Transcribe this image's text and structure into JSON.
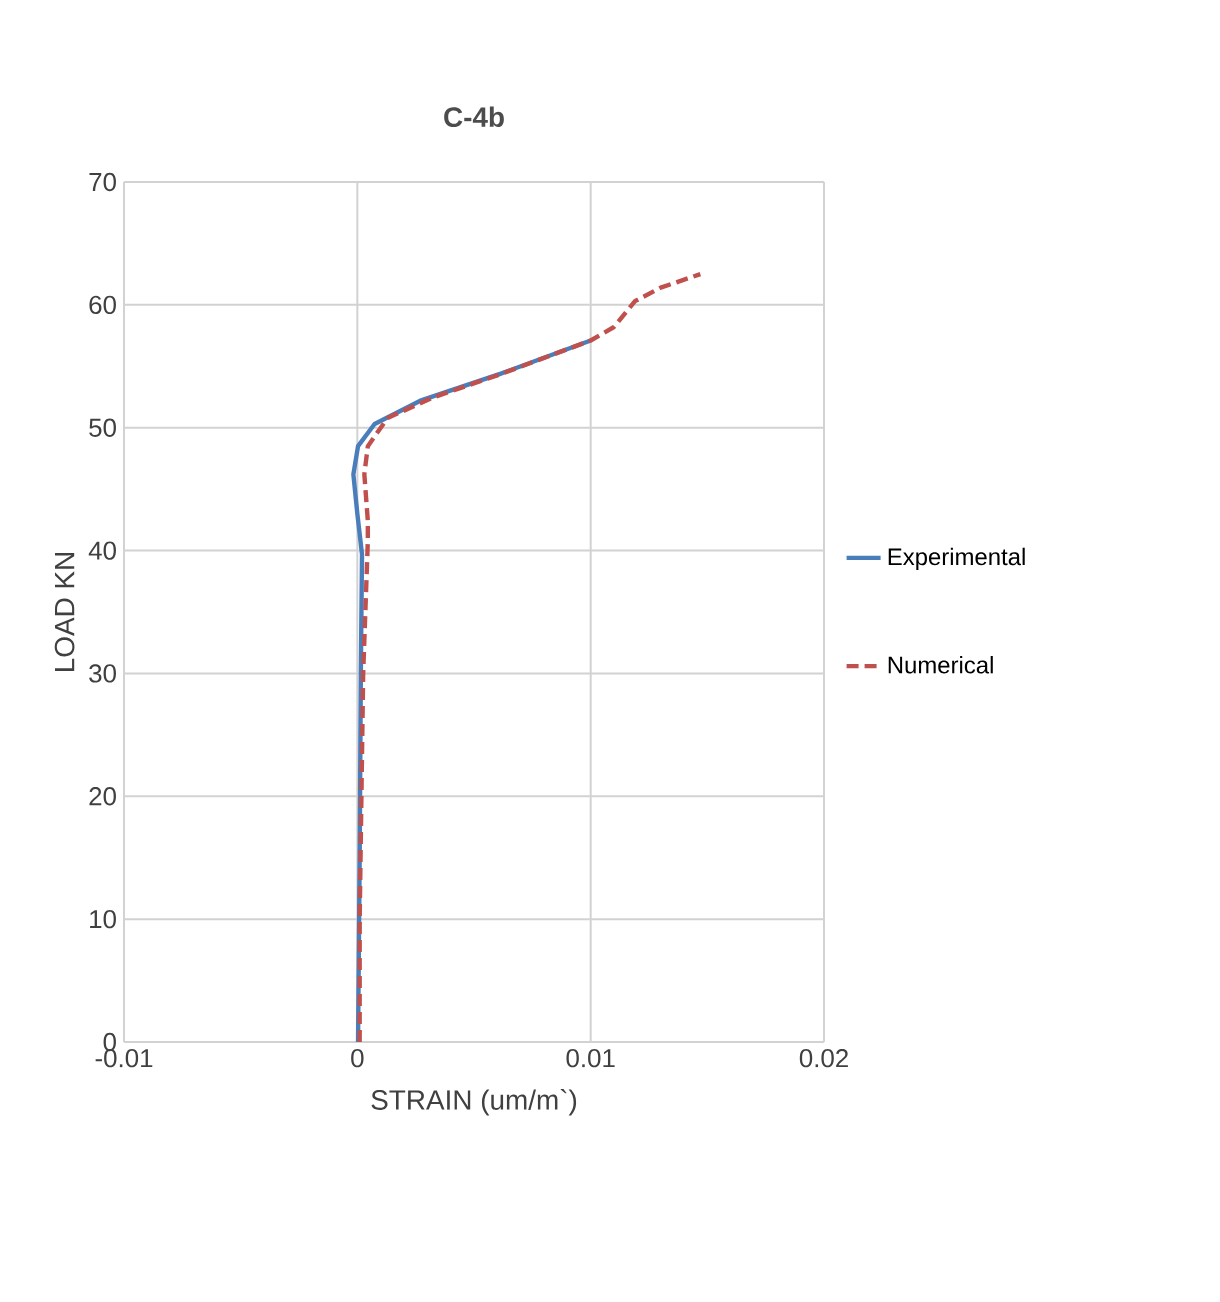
{
  "chart_data": {
    "type": "line",
    "title": "C-4b",
    "xlabel": "STRAIN  (um/m`)",
    "ylabel": "LOAD KN",
    "xlim": [
      -0.01,
      0.02
    ],
    "xticks": [
      -0.01,
      0,
      0.01,
      0.02
    ],
    "ylim": [
      0,
      70
    ],
    "yticks": [
      0,
      10,
      20,
      30,
      40,
      50,
      60,
      70
    ],
    "grid": true,
    "legend": "right",
    "marker": "none",
    "series": [
      {
        "name": "Experimental",
        "color": "#4a7ebb",
        "line_style": "solid",
        "x": [
          3e-05,
          0.0001,
          0.00015,
          0.0002,
          0,
          -0.00017,
          3e-05,
          0.00074,
          0.0027,
          0.00615,
          0.01
        ],
        "values": [
          0,
          15,
          30,
          39.7,
          43,
          46.2,
          48.5,
          50.3,
          52.2,
          54.4,
          57.1
        ]
      },
      {
        "name": "Numerical",
        "color": "#c0504d",
        "line_style": "dashed",
        "x": [
          0.0001,
          0.0001,
          0.00025,
          0.00045,
          0.00045,
          0.0003,
          0.00045,
          0.0013,
          0.0033,
          0.0062,
          0.01,
          0.011,
          0.0119,
          0.013,
          0.0147
        ],
        "values": [
          0,
          10,
          30,
          40.8,
          42.4,
          46.2,
          48.5,
          50.8,
          52.5,
          54.4,
          57.1,
          58.2,
          60.3,
          61.4,
          62.5
        ]
      }
    ]
  }
}
